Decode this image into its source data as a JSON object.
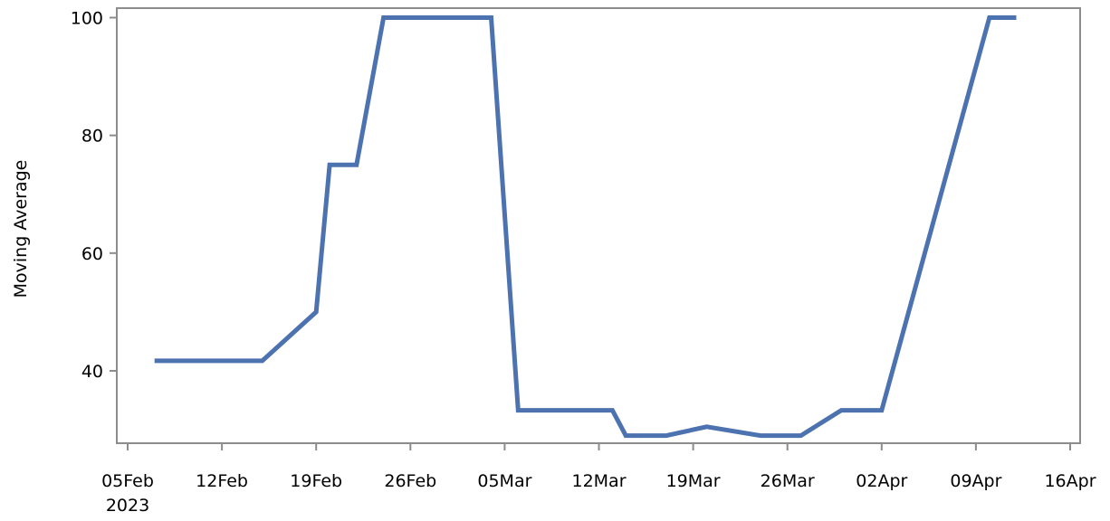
{
  "chart_data": {
    "type": "line",
    "title": "",
    "xlabel": "",
    "ylabel": "Moving Average",
    "ylim": [
      27.5,
      101.5
    ],
    "yticks": [
      40,
      60,
      80,
      100
    ],
    "xlim": [
      "2023-02-04",
      "2023-04-16"
    ],
    "xticks": [
      {
        "date": "2023-02-05",
        "label": "05Feb",
        "sublabel": "2023"
      },
      {
        "date": "2023-02-12",
        "label": "12Feb",
        "sublabel": ""
      },
      {
        "date": "2023-02-19",
        "label": "19Feb",
        "sublabel": ""
      },
      {
        "date": "2023-02-26",
        "label": "26Feb",
        "sublabel": ""
      },
      {
        "date": "2023-03-05",
        "label": "05Mar",
        "sublabel": ""
      },
      {
        "date": "2023-03-12",
        "label": "12Mar",
        "sublabel": ""
      },
      {
        "date": "2023-03-19",
        "label": "19Mar",
        "sublabel": ""
      },
      {
        "date": "2023-03-26",
        "label": "26Mar",
        "sublabel": ""
      },
      {
        "date": "2023-04-02",
        "label": "02Apr",
        "sublabel": ""
      },
      {
        "date": "2023-04-09",
        "label": "09Apr",
        "sublabel": ""
      },
      {
        "date": "2023-04-16",
        "label": "16Apr",
        "sublabel": ""
      }
    ],
    "grid": false,
    "series": [
      {
        "color": "#4c72b0",
        "x": [
          "2023-02-07",
          "2023-02-15",
          "2023-02-19",
          "2023-02-20",
          "2023-02-22",
          "2023-02-24",
          "2023-03-04",
          "2023-03-06",
          "2023-03-13",
          "2023-03-14",
          "2023-03-17",
          "2023-03-20",
          "2023-03-24",
          "2023-03-27",
          "2023-03-30",
          "2023-04-02",
          "2023-04-10",
          "2023-04-12"
        ],
        "y": [
          41.7,
          41.7,
          50,
          75,
          75,
          100,
          100,
          33.3,
          33.3,
          29,
          29,
          30.5,
          29,
          29,
          33.3,
          33.3,
          100,
          100
        ]
      }
    ]
  }
}
